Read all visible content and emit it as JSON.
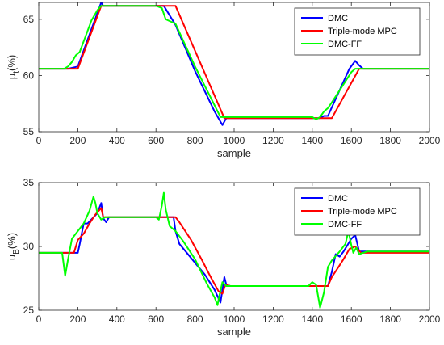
{
  "colors": {
    "DMC": "#0000ff",
    "Triple-mode MPC": "#ff0000",
    "DMC-FF": "#00ff00",
    "axis": "#262626",
    "background": "#ffffff"
  },
  "chart_data": [
    {
      "type": "line",
      "xlabel": "sample",
      "ylabel_main": "μ",
      "ylabel_sub": "t",
      "ylabel_tail": "(%)",
      "xlim": [
        0,
        2000
      ],
      "ylim": [
        55,
        66.5
      ],
      "xticks": [
        0,
        200,
        400,
        600,
        800,
        1000,
        1200,
        1400,
        1600,
        1800,
        2000
      ],
      "yticks": [
        55,
        60,
        65
      ],
      "legend_position": "top-right",
      "grid": false,
      "series": [
        {
          "name": "DMC",
          "color": "#0000ff",
          "x": [
            0,
            150,
            200,
            320,
            330,
            600,
            640,
            700,
            800,
            900,
            940,
            960,
            1000,
            1440,
            1460,
            1480,
            1590,
            1620,
            1640,
            1660,
            2000
          ],
          "y": [
            60.6,
            60.6,
            60.8,
            66.5,
            66.2,
            66.2,
            66.2,
            64.5,
            60.4,
            56.8,
            55.6,
            56.2,
            56.2,
            56.2,
            56.4,
            56.4,
            60.6,
            61.3,
            60.9,
            60.6,
            60.6
          ]
        },
        {
          "name": "Triple-mode MPC",
          "color": "#ff0000",
          "x": [
            0,
            200,
            320,
            700,
            950,
            1500,
            1640,
            2000
          ],
          "y": [
            60.6,
            60.6,
            66.2,
            66.2,
            56.2,
            56.2,
            60.6,
            60.6
          ]
        },
        {
          "name": "DMC-FF",
          "color": "#00ff00",
          "x": [
            0,
            130,
            150,
            170,
            190,
            210,
            240,
            270,
            300,
            320,
            600,
            630,
            650,
            700,
            800,
            930,
            950,
            1400,
            1420,
            1440,
            1460,
            1480,
            1500,
            1600,
            1620,
            1630,
            2000
          ],
          "y": [
            60.6,
            60.6,
            60.8,
            61.2,
            61.8,
            62.1,
            63.5,
            64.9,
            65.8,
            66.2,
            66.2,
            66.0,
            65.0,
            64.6,
            60.8,
            56.3,
            56.3,
            56.3,
            56.1,
            56.3,
            56.8,
            57.1,
            57.6,
            60.3,
            60.6,
            60.6,
            60.6
          ]
        }
      ]
    },
    {
      "type": "line",
      "xlabel": "sample",
      "ylabel_main": "u",
      "ylabel_sub": "B",
      "ylabel_tail": "(%)",
      "xlim": [
        0,
        2000
      ],
      "ylim": [
        25,
        35
      ],
      "xticks": [
        0,
        200,
        400,
        600,
        800,
        1000,
        1200,
        1400,
        1600,
        1800,
        2000
      ],
      "yticks": [
        25,
        30,
        35
      ],
      "legend_position": "top-right",
      "grid": false,
      "series": [
        {
          "name": "DMC",
          "color": "#0000ff",
          "x": [
            0,
            200,
            210,
            230,
            250,
            300,
            320,
            330,
            345,
            360,
            380,
            690,
            700,
            720,
            850,
            900,
            930,
            950,
            960,
            980,
            1480,
            1500,
            1520,
            1540,
            1560,
            1600,
            1620,
            1640,
            1660,
            1680,
            2000
          ],
          "y": [
            29.5,
            29.5,
            30.2,
            31.8,
            31.8,
            32.6,
            33.4,
            32.2,
            31.9,
            32.3,
            32.3,
            32.3,
            31.2,
            30.2,
            27.8,
            26.6,
            25.6,
            27.6,
            27.0,
            26.9,
            26.9,
            28.0,
            29.4,
            29.2,
            29.6,
            30.6,
            30.9,
            29.6,
            29.6,
            29.6,
            29.6
          ]
        },
        {
          "name": "Triple-mode MPC",
          "color": "#ff0000",
          "x": [
            0,
            180,
            200,
            230,
            260,
            290,
            320,
            330,
            340,
            700,
            720,
            780,
            840,
            880,
            920,
            940,
            955,
            980,
            1480,
            1500,
            1530,
            1560,
            1590,
            1620,
            1650,
            2000
          ],
          "y": [
            29.5,
            29.5,
            30.5,
            31.0,
            31.8,
            32.5,
            33.0,
            32.3,
            32.3,
            32.3,
            31.9,
            30.5,
            28.8,
            27.6,
            26.5,
            26.3,
            27.0,
            26.9,
            26.9,
            27.6,
            28.3,
            29.0,
            29.8,
            30.0,
            29.5,
            29.5
          ]
        },
        {
          "name": "DMC-FF",
          "color": "#00ff00",
          "x": [
            0,
            120,
            135,
            150,
            170,
            200,
            230,
            260,
            280,
            290,
            300,
            320,
            340,
            600,
            615,
            630,
            640,
            650,
            670,
            700,
            740,
            800,
            860,
            900,
            915,
            925,
            940,
            960,
            1380,
            1400,
            1420,
            1440,
            1460,
            1480,
            1500,
            1540,
            1570,
            1585,
            1600,
            1610,
            1625,
            1640,
            1680,
            2000
          ],
          "y": [
            29.5,
            29.5,
            27.7,
            29.0,
            30.6,
            31.2,
            31.8,
            32.8,
            33.9,
            33.4,
            32.6,
            32.1,
            32.3,
            32.3,
            32.1,
            33.2,
            34.2,
            32.9,
            31.6,
            31.2,
            30.4,
            29.0,
            27.1,
            26.0,
            25.4,
            26.2,
            27.2,
            26.9,
            26.9,
            27.2,
            27.0,
            25.2,
            26.4,
            28.4,
            28.9,
            29.6,
            30.2,
            31.2,
            30.1,
            29.5,
            29.9,
            29.4,
            29.6,
            29.6
          ]
        }
      ]
    }
  ]
}
